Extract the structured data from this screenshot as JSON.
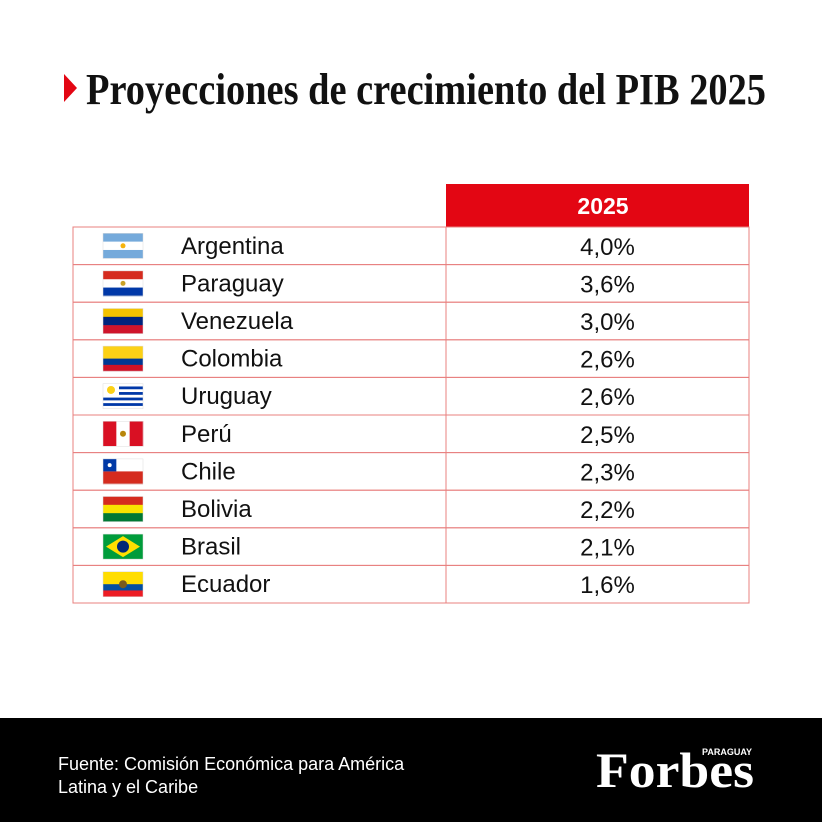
{
  "header": {
    "title": "Proyecciones de crecimiento del PIB 2025"
  },
  "table": {
    "columns": [
      "2025"
    ],
    "rows": [
      [
        "Argentina",
        "4,0%"
      ],
      [
        "Paraguay",
        "3,6%"
      ],
      [
        "Venezuela",
        "3,0%"
      ],
      [
        "Colombia",
        "2,6%"
      ],
      [
        "Uruguay",
        "2,6%"
      ],
      [
        "Perú",
        "2,5%"
      ],
      [
        "Chile",
        "2,3%"
      ],
      [
        "Bolivia",
        "2,2%"
      ],
      [
        "Brasil",
        "2,1%"
      ],
      [
        "Ecuador",
        "1,6%"
      ]
    ]
  },
  "footer": {
    "source": [
      "Fuente: Comisión Económica para América",
      "Latina y el Caribe"
    ],
    "logo": "Forbes",
    "edition": "PARAGUAY"
  }
}
